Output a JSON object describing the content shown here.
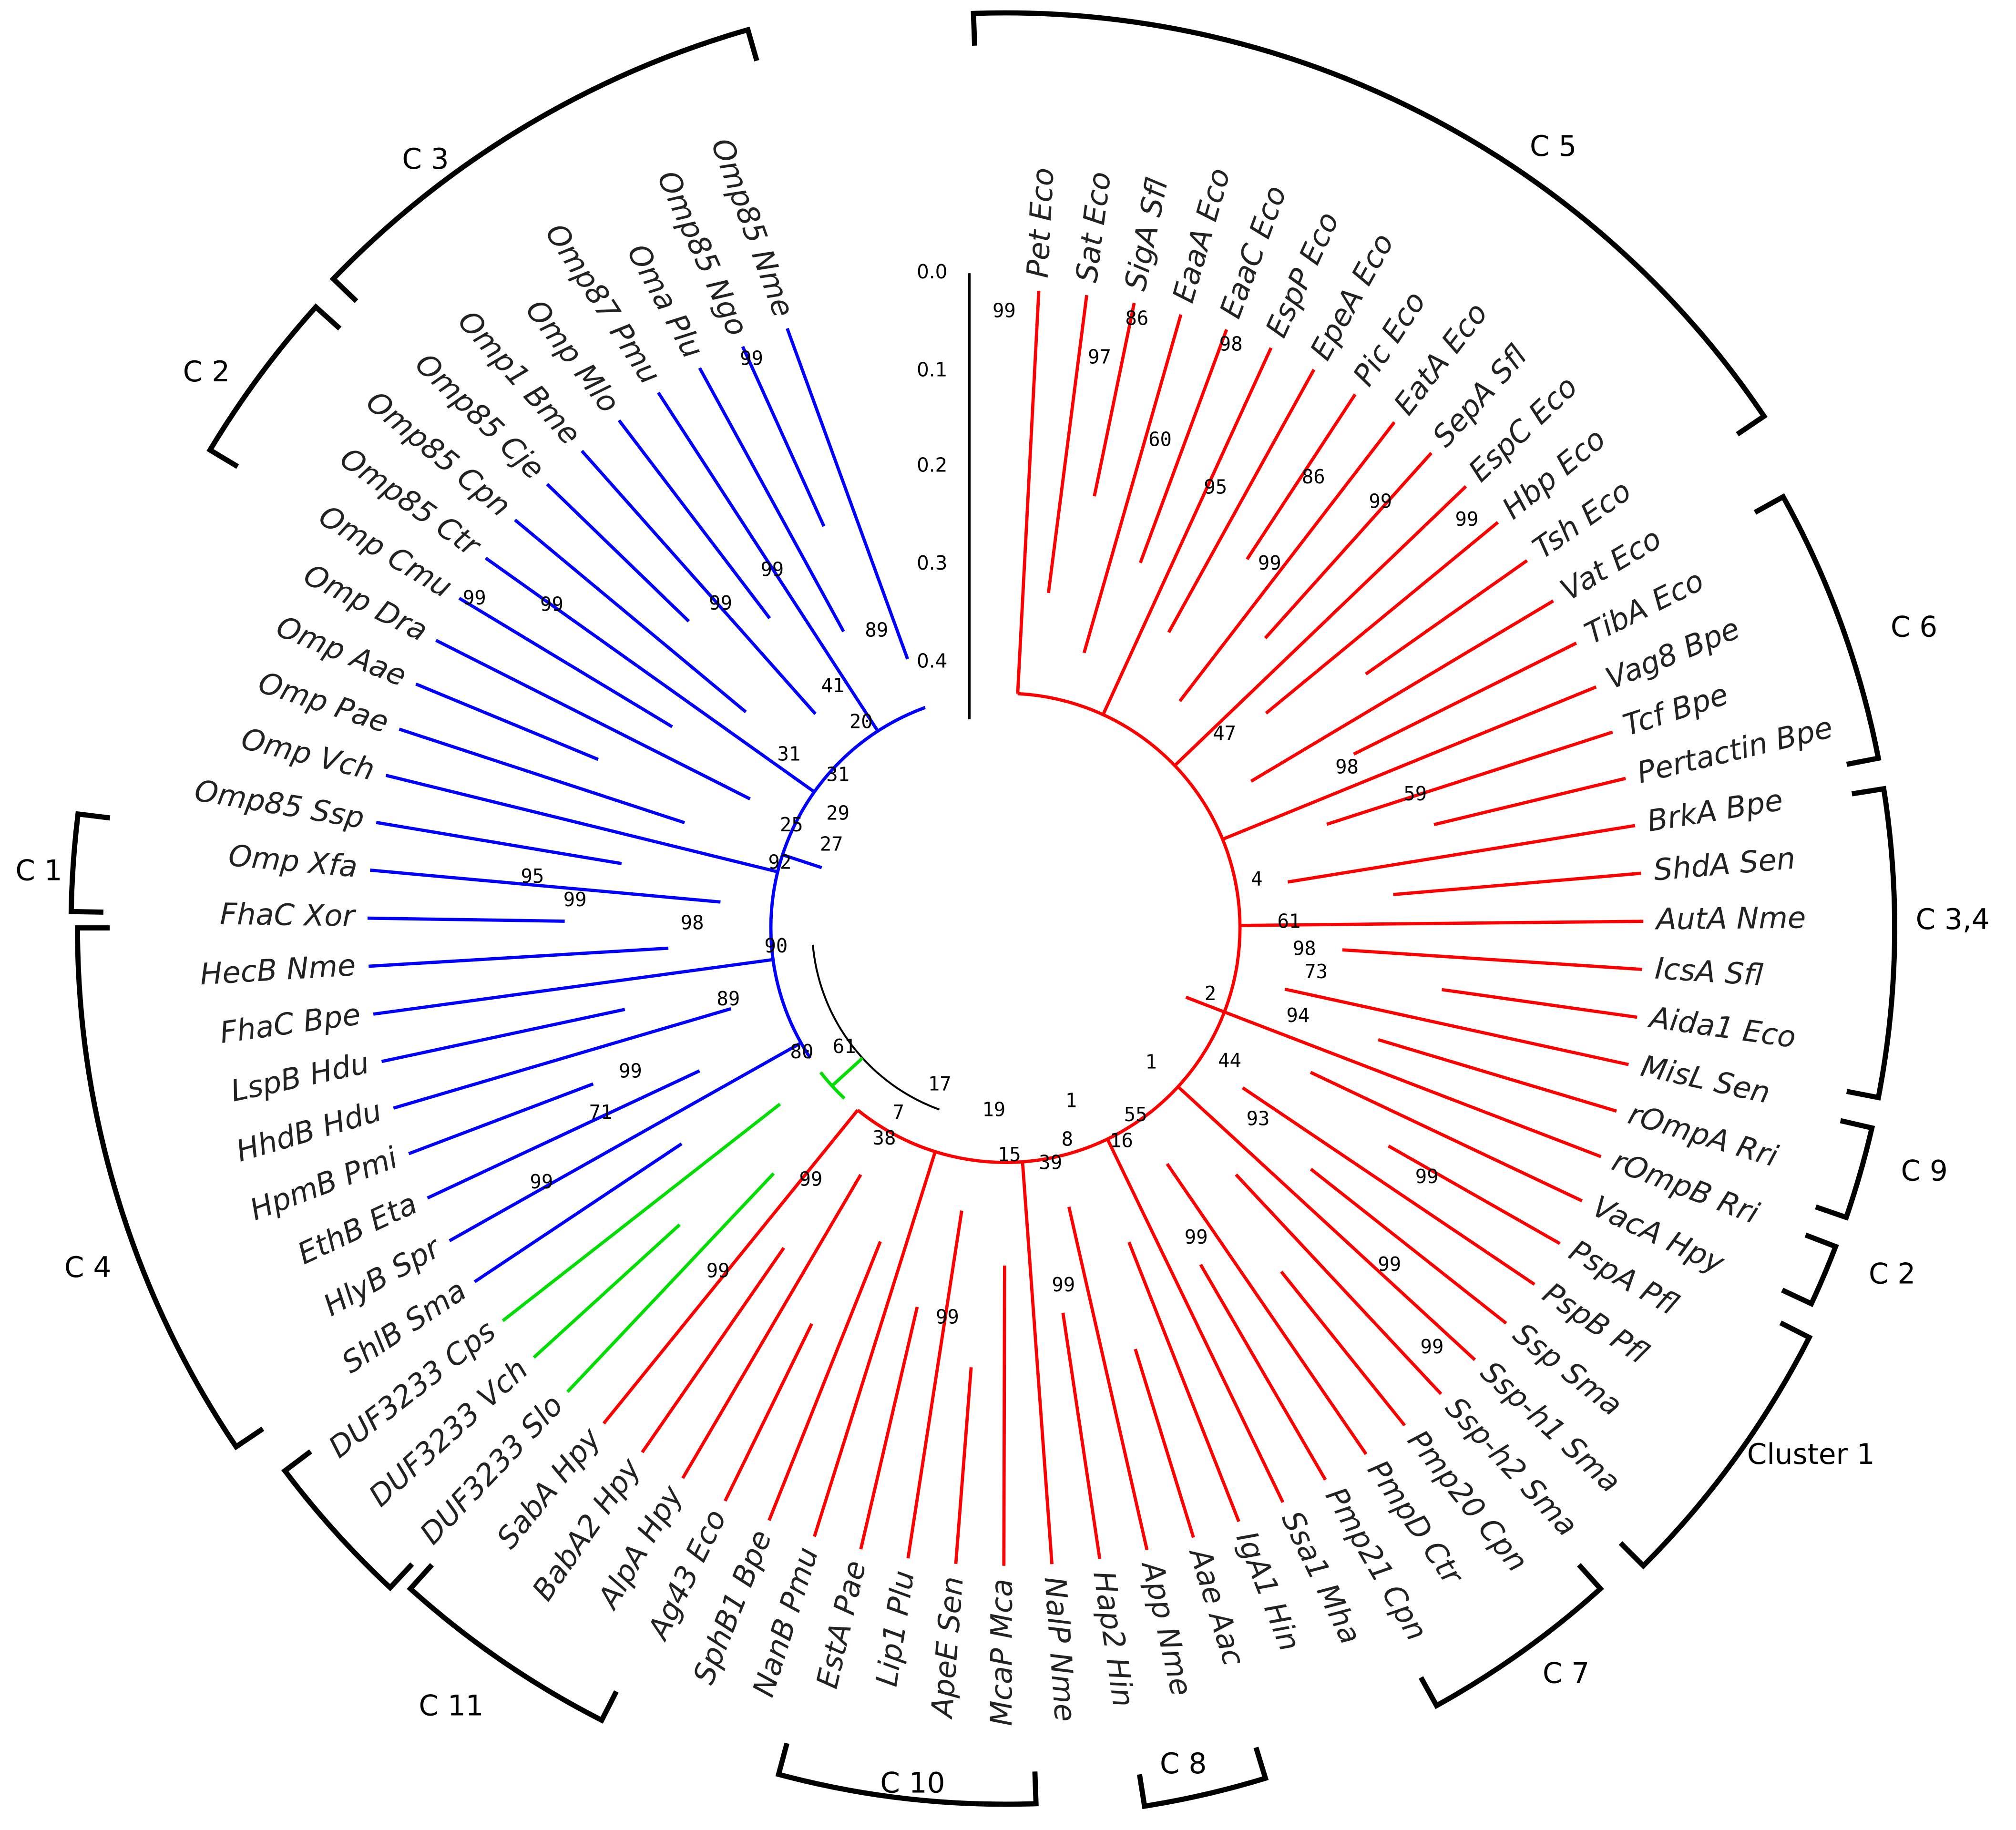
{
  "leaves": [
    "Pet Eco",
    "Sat Eco",
    "SigA Sfl",
    "EaaA Eco",
    "EaaC Eco",
    "EspP Eco",
    "EpeA Eco",
    "Pic Eco",
    "EatA Eco",
    "SepA Sfl",
    "EspC Eco",
    "Hbp Eco",
    "Tsh Eco",
    "Vat Eco",
    "TibA Eco",
    "Vag8 Bpe",
    "Tcf Bpe",
    "Pertactin Bpe",
    "BrkA Bpe",
    "ShdA Sen",
    "AutA Nme",
    "IcsA Sfl",
    "Aida1 Eco",
    "MisL Sen",
    "rOmpA Rri",
    "rOmpB Rri",
    "VacA Hpy",
    "PspA Pfl",
    "PspB Pfl",
    "Ssp Sma",
    "Ssp-h1 Sma",
    "Ssp-h2 Sma",
    "Pmp20 Cpn",
    "PmpD Ctr",
    "Pmp21 Cpn",
    "Ssa1 Mha",
    "IgA1 Hin",
    "Aae Aac",
    "App Nme",
    "Hap2 Hin",
    "NalP Nme",
    "McaP Mca",
    "ApeE Sen",
    "Lip1 Plu",
    "EstA Pae",
    "NanB Pmu",
    "SphB1 Bpe",
    "Ag43 Eco",
    "AlpA Hpy",
    "BabA2 Hpy",
    "SabA Hpy",
    "DUF3233 Slo",
    "DUF3233 Vch",
    "DUF3233 Cps",
    "ShlB Sma",
    "HlyB Spr",
    "EthB Eta",
    "HpmB Pmi",
    "HhdB Hdu",
    "LspB Hdu",
    "FhaC Bpe",
    "HecB Nme",
    "FhaC Xor",
    "Omp Xfa",
    "Omp85 Ssp",
    "Omp Vch",
    "Omp Pae",
    "Omp Aae",
    "Omp Dra",
    "Omp Cmu",
    "Omp85 Ctr",
    "Omp85 Cpn",
    "Omp85 Cje",
    "Omp1 Bme",
    "Omp Mlo",
    "Omp87 Pmu",
    "Oma Plu",
    "Omp85 Ngo",
    "Omp85 Nme"
  ],
  "bootstrap": [
    99,
    86,
    97,
    98,
    60,
    95,
    86,
    99,
    99,
    99,
    47,
    98,
    59,
    4,
    61,
    98,
    73,
    2,
    94,
    44,
    1,
    93,
    99,
    55,
    1,
    16,
    8,
    39,
    99,
    99,
    99,
    99,
    99,
    15,
    19,
    7,
    38,
    99,
    99,
    17,
    61,
    80,
    99,
    99,
    99,
    99,
    99,
    89,
    41,
    20,
    31,
    31,
    29,
    25,
    27,
    92,
    95,
    99,
    98,
    90,
    89,
    99,
    71,
    99
  ],
  "clusters": [
    "C 5",
    "C 6",
    "C 3,4",
    "C 9",
    "C 2",
    "Cluster 1",
    "C 7",
    "C 8",
    "C 10",
    "C 11",
    "C 4",
    "C 1",
    "C 2",
    "C 3"
  ],
  "scale": {
    "ticks": [
      "0.0",
      "0.1",
      "0.2",
      "0.3",
      "0.4"
    ]
  }
}
